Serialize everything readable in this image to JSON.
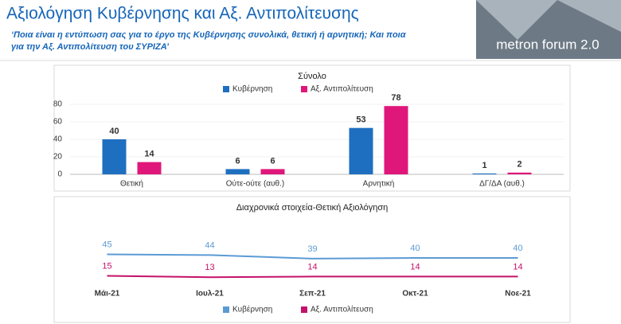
{
  "header": {
    "title": "Αξιολόγηση Κυβέρνησης και Αξ. Αντιπολίτευσης",
    "subtitle_lines": [
      "‘Ποια είναι η εντύπωση σας για το έργο της Κυβέρνησης συνολικά, θετική ή αρνητική; Και ποια",
      "για την Αξ. Αντιπολίτευση του ΣΥΡΙΖΑ’"
    ],
    "logo": "metron forum 2.0"
  },
  "chart_data": [
    {
      "type": "bar",
      "title": "Σύνολο",
      "categories": [
        "Θετική",
        "Ούτε-ούτε (αυθ.)",
        "Αρνητική",
        "ΔΓ/ΔΑ (αυθ.)"
      ],
      "series": [
        {
          "name": "Κυβέρνηση",
          "color": "#1f6fc0",
          "values": [
            40,
            6,
            53,
            1
          ]
        },
        {
          "name": "Αξ. Αντιπολίτευση",
          "color": "#e0177a",
          "values": [
            14,
            6,
            78,
            2
          ]
        }
      ],
      "ylim": [
        0,
        80
      ],
      "yticks": [
        0,
        20,
        40,
        60,
        80
      ],
      "legend": "top"
    },
    {
      "type": "line",
      "title": "Διαχρονικά στοιχεία-Θετική Αξιολόγηση",
      "categories": [
        "Μάι-21",
        "Ιουλ-21",
        "Σεπ-21",
        "Οκτ-21",
        "Νοε-21"
      ],
      "series": [
        {
          "name": "Κυβέρνηση",
          "color": "#5b9bd5",
          "values": [
            45,
            44,
            39,
            40,
            40
          ]
        },
        {
          "name": "Αξ. Αντιπολίτευση",
          "color": "#c4126a",
          "values": [
            15,
            13,
            14,
            14,
            14
          ]
        }
      ],
      "ylim": [
        0,
        60
      ],
      "legend": "bottom"
    }
  ]
}
